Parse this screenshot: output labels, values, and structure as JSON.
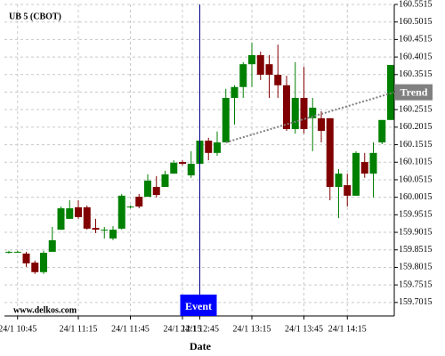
{
  "chart_data": {
    "type": "candlestick",
    "title": "UB 5 (CBOT)",
    "watermark": "www.delkos.com",
    "x_label": "Date",
    "categories": [
      null,
      "24/1 10:45",
      null,
      null,
      null,
      null,
      null,
      null,
      "24/1 11:15",
      null,
      null,
      null,
      null,
      null,
      "24/1 11:45",
      null,
      null,
      null,
      null,
      null,
      "24/1 12:15",
      null,
      "24/1 12:45",
      null,
      null,
      null,
      null,
      null,
      "24/1 13:15",
      null,
      null,
      null,
      null,
      null,
      "24/1 13:45",
      null,
      null,
      null,
      null,
      "24/1 14:15",
      null,
      null,
      null,
      null,
      null
    ],
    "open": [
      159.846,
      159.846,
      159.841,
      159.815,
      159.788,
      159.846,
      159.909,
      159.94,
      159.973,
      159.973,
      159.914,
      159.909,
      159.884,
      159.912,
      159.975,
      160.003,
      160.003,
      160.031,
      160.031,
      160.069,
      160.102,
      160.064,
      160.097,
      160.163,
      160.128,
      160.158,
      160.285,
      160.316,
      160.381,
      160.407,
      160.381,
      160.351,
      160.321,
      160.196,
      160.285,
      160.227,
      160.227,
      160.227,
      160.031,
      160.036,
      160.006,
      160.102,
      160.069,
      160.158,
      160.222
    ],
    "high": [
      159.849,
      159.849,
      159.846,
      159.821,
      159.849,
      159.917,
      159.975,
      159.993,
      159.993,
      159.978,
      159.94,
      159.917,
      159.919,
      160.011,
      159.978,
      160.011,
      160.067,
      160.062,
      160.077,
      160.107,
      160.107,
      160.133,
      160.196,
      160.171,
      160.189,
      160.311,
      160.321,
      160.387,
      160.442,
      160.417,
      160.407,
      160.437,
      160.348,
      160.387,
      160.374,
      160.285,
      160.247,
      160.227,
      160.082,
      160.069,
      160.133,
      160.128,
      160.158,
      160.222,
      160.379
    ],
    "low": [
      159.841,
      159.843,
      159.803,
      159.783,
      159.783,
      159.846,
      159.909,
      159.94,
      159.94,
      159.909,
      159.899,
      159.884,
      159.879,
      159.909,
      159.97,
      159.97,
      160.003,
      160.001,
      160.031,
      160.069,
      160.092,
      160.057,
      160.092,
      160.107,
      160.12,
      160.158,
      160.209,
      160.285,
      160.316,
      160.336,
      160.285,
      160.285,
      160.191,
      160.183,
      160.183,
      160.133,
      160.158,
      159.993,
      159.942,
      159.975,
      160.006,
      160.057,
      160.001,
      160.153,
      160.222
    ],
    "close": [
      159.846,
      159.846,
      159.813,
      159.788,
      159.843,
      159.879,
      159.97,
      159.97,
      159.945,
      159.912,
      159.909,
      159.909,
      159.909,
      160.006,
      159.975,
      159.975,
      160.049,
      160.008,
      160.067,
      160.1,
      160.097,
      160.097,
      160.163,
      160.128,
      160.158,
      160.285,
      160.316,
      160.381,
      160.407,
      160.351,
      160.351,
      160.321,
      160.196,
      160.285,
      160.196,
      160.257,
      160.191,
      160.031,
      160.069,
      160.006,
      160.128,
      160.069,
      160.128,
      160.222,
      160.379
    ],
    "up_color": "#008000",
    "down_color": "#800000",
    "ylim": [
      159.663,
      160.5515
    ],
    "yticks": [
      159.7015,
      159.7515,
      159.8015,
      159.8515,
      159.9015,
      159.9515,
      160.0015,
      160.0515,
      160.1015,
      160.1515,
      160.2015,
      160.2515,
      160.3015,
      160.3515,
      160.4015,
      160.4515,
      160.5015,
      160.5515
    ],
    "grid": true,
    "event": {
      "label": "Event",
      "at": "24/1 12:45",
      "color": "#0000ff"
    },
    "trend": {
      "label": "Trend",
      "start": 160.158,
      "end": 160.301,
      "color": "#808080"
    }
  }
}
